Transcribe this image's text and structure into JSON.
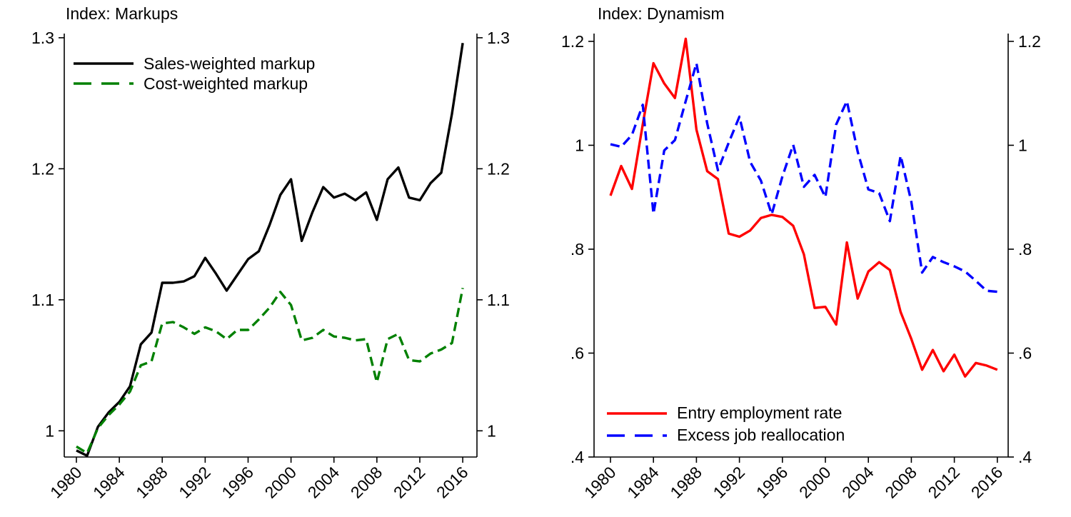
{
  "figure": {
    "background": "#ffffff",
    "axis_color": "#000000",
    "text_color": "#000000"
  },
  "chart_data": [
    {
      "type": "line",
      "title": "Index: Markups",
      "x": [
        1980,
        1981,
        1982,
        1983,
        1984,
        1985,
        1986,
        1987,
        1988,
        1989,
        1990,
        1991,
        1992,
        1993,
        1994,
        1995,
        1996,
        1997,
        1998,
        1999,
        2000,
        2001,
        2002,
        2003,
        2004,
        2005,
        2006,
        2007,
        2008,
        2009,
        2010,
        2011,
        2012,
        2013,
        2014,
        2015,
        2016
      ],
      "x_tick_labels": [
        "1980",
        "1984",
        "1988",
        "1992",
        "1996",
        "2000",
        "2004",
        "2008",
        "2012",
        "2016"
      ],
      "x_tick_years": [
        1980,
        1984,
        1988,
        1992,
        1996,
        2000,
        2004,
        2008,
        2012,
        2016
      ],
      "y_tick_labels": [
        "1",
        "1.1",
        "1.2",
        "1.3"
      ],
      "y_tick_values": [
        1.0,
        1.1,
        1.2,
        1.3
      ],
      "ylim": [
        0.98,
        1.3032
      ],
      "grid": false,
      "legend_position": "top-left",
      "series": [
        {
          "name": "Sales-weighted markup",
          "color": "#000000",
          "style": "solid",
          "values": [
            0.985,
            0.981,
            1.003,
            1.014,
            1.022,
            1.034,
            1.066,
            1.075,
            1.113,
            1.113,
            1.114,
            1.118,
            1.132,
            1.12,
            1.107,
            1.119,
            1.131,
            1.137,
            1.157,
            1.18,
            1.192,
            1.145,
            1.167,
            1.186,
            1.178,
            1.181,
            1.176,
            1.182,
            1.161,
            1.192,
            1.201,
            1.178,
            1.176,
            1.189,
            1.197,
            1.242,
            1.296
          ]
        },
        {
          "name": "Cost-weighted markup",
          "color": "#008000",
          "style": "dashed",
          "values": [
            0.988,
            0.983,
            1.002,
            1.012,
            1.02,
            1.03,
            1.05,
            1.053,
            1.082,
            1.083,
            1.079,
            1.074,
            1.079,
            1.076,
            1.07,
            1.077,
            1.077,
            1.085,
            1.094,
            1.106,
            1.096,
            1.069,
            1.071,
            1.077,
            1.072,
            1.071,
            1.069,
            1.07,
            1.037,
            1.07,
            1.074,
            1.054,
            1.053,
            1.059,
            1.062,
            1.067,
            1.109
          ]
        }
      ]
    },
    {
      "type": "line",
      "title": "Index: Dynamism",
      "x": [
        1980,
        1981,
        1982,
        1983,
        1984,
        1985,
        1986,
        1987,
        1988,
        1989,
        1990,
        1991,
        1992,
        1993,
        1994,
        1995,
        1996,
        1997,
        1998,
        1999,
        2000,
        2001,
        2002,
        2003,
        2004,
        2005,
        2006,
        2007,
        2008,
        2009,
        2010,
        2011,
        2012,
        2013,
        2014,
        2015,
        2016
      ],
      "x_tick_labels": [
        "1980",
        "1984",
        "1988",
        "1992",
        "1996",
        "2000",
        "2004",
        "2008",
        "2012",
        "2016"
      ],
      "x_tick_years": [
        1980,
        1984,
        1988,
        1992,
        1996,
        2000,
        2004,
        2008,
        2012,
        2016
      ],
      "y_tick_labels": [
        ".4",
        ".6",
        ".8",
        "1",
        "1.2"
      ],
      "y_tick_values": [
        0.4,
        0.6,
        0.8,
        1.0,
        1.2
      ],
      "ylim": [
        0.4,
        1.215
      ],
      "grid": false,
      "legend_position": "bottom-left",
      "series": [
        {
          "name": "Entry employment rate",
          "color": "#ff0000",
          "style": "solid",
          "values": [
            0.903,
            0.96,
            0.916,
            1.04,
            1.158,
            1.119,
            1.091,
            1.205,
            1.03,
            0.95,
            0.935,
            0.83,
            0.824,
            0.836,
            0.86,
            0.866,
            0.862,
            0.845,
            0.79,
            0.687,
            0.689,
            0.655,
            0.813,
            0.705,
            0.757,
            0.775,
            0.76,
            0.679,
            0.627,
            0.568,
            0.606,
            0.565,
            0.597,
            0.555,
            0.581,
            0.576,
            0.568
          ]
        },
        {
          "name": "Excess job reallocation",
          "color": "#0000ff",
          "style": "dashed",
          "values": [
            1.002,
            0.997,
            1.02,
            1.078,
            0.868,
            0.99,
            1.01,
            1.085,
            1.158,
            1.042,
            0.952,
            1.005,
            1.055,
            0.968,
            0.932,
            0.867,
            0.94,
            1.001,
            0.92,
            0.943,
            0.9,
            1.04,
            1.085,
            0.988,
            0.915,
            0.908,
            0.854,
            0.98,
            0.891,
            0.755,
            0.785,
            0.775,
            0.767,
            0.757,
            0.739,
            0.72,
            0.718
          ]
        }
      ]
    }
  ]
}
